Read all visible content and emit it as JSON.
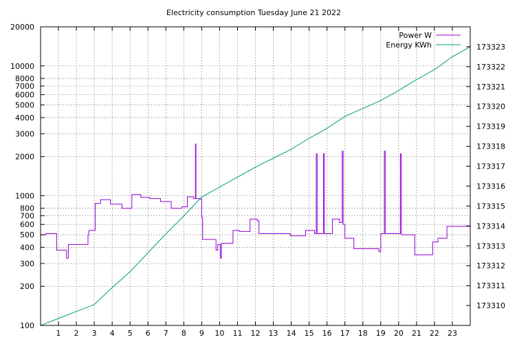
{
  "chart_data": {
    "type": "line",
    "title": "Electricity consumption Tuesday June 21 2022",
    "xlabel": "",
    "xlim": [
      0,
      24
    ],
    "x_ticks": [
      1,
      2,
      3,
      4,
      5,
      6,
      7,
      8,
      9,
      10,
      11,
      12,
      13,
      14,
      15,
      16,
      17,
      18,
      19,
      20,
      21,
      22,
      23
    ],
    "y_axes": [
      {
        "side": "left",
        "label": "",
        "scale": "log",
        "ylim": [
          100,
          20000
        ],
        "ticks": [
          {
            "value": 100,
            "label": "100"
          },
          {
            "value": 200,
            "label": "200"
          },
          {
            "value": 300,
            "label": "300"
          },
          {
            "value": 400,
            "label": "400"
          },
          {
            "value": 500,
            "label": "500"
          },
          {
            "value": 600,
            "label": "600"
          },
          {
            "value": 700,
            "label": "700"
          },
          {
            "value": 800,
            "label": "800"
          },
          {
            "value": 1000,
            "label": "1000"
          },
          {
            "value": 2000,
            "label": "2000"
          },
          {
            "value": 3000,
            "label": "3000"
          },
          {
            "value": 4000,
            "label": "4000"
          },
          {
            "value": 5000,
            "label": "5000"
          },
          {
            "value": 6000,
            "label": "6000"
          },
          {
            "value": 7000,
            "label": "7000"
          },
          {
            "value": 8000,
            "label": "8000"
          },
          {
            "value": 10000,
            "label": "10000"
          },
          {
            "value": 20000,
            "label": "20000"
          }
        ]
      },
      {
        "side": "right",
        "label": "",
        "scale": "linear",
        "ylim": [
          173309.0,
          173324.0
        ],
        "ticks": [
          173310,
          173311,
          173312,
          173313,
          173314,
          173315,
          173316,
          173317,
          173318,
          173319,
          173320,
          173321,
          173322,
          173323
        ]
      }
    ],
    "grid": true,
    "legend_position": "top-right",
    "series": [
      {
        "name": "Power W",
        "axis": "left",
        "color": "#9400d3",
        "style": "steps",
        "points": [
          [
            0.0,
            500
          ],
          [
            0.3,
            510
          ],
          [
            0.9,
            380
          ],
          [
            1.4,
            380
          ],
          [
            1.45,
            330
          ],
          [
            1.55,
            420
          ],
          [
            2.6,
            420
          ],
          [
            2.65,
            500
          ],
          [
            2.7,
            540
          ],
          [
            3.0,
            540
          ],
          [
            3.05,
            870
          ],
          [
            3.35,
            930
          ],
          [
            3.9,
            860
          ],
          [
            4.55,
            800
          ],
          [
            5.1,
            1020
          ],
          [
            5.6,
            970
          ],
          [
            6.1,
            950
          ],
          [
            6.7,
            900
          ],
          [
            7.3,
            800
          ],
          [
            7.9,
            820
          ],
          [
            8.2,
            980
          ],
          [
            8.55,
            950
          ],
          [
            8.65,
            2500
          ],
          [
            8.68,
            950
          ],
          [
            8.9,
            940
          ],
          [
            9.0,
            680
          ],
          [
            9.05,
            460
          ],
          [
            9.8,
            380
          ],
          [
            9.9,
            420
          ],
          [
            10.05,
            330
          ],
          [
            10.1,
            430
          ],
          [
            10.75,
            540
          ],
          [
            11.1,
            530
          ],
          [
            11.7,
            660
          ],
          [
            12.1,
            640
          ],
          [
            12.2,
            510
          ],
          [
            13.0,
            510
          ],
          [
            13.95,
            490
          ],
          [
            14.8,
            540
          ],
          [
            15.3,
            510
          ],
          [
            15.4,
            2100
          ],
          [
            15.45,
            510
          ],
          [
            15.8,
            2100
          ],
          [
            15.85,
            510
          ],
          [
            16.3,
            660
          ],
          [
            16.7,
            620
          ],
          [
            16.85,
            2200
          ],
          [
            16.9,
            600
          ],
          [
            17.0,
            470
          ],
          [
            17.5,
            390
          ],
          [
            18.9,
            370
          ],
          [
            19.0,
            510
          ],
          [
            19.2,
            2200
          ],
          [
            19.25,
            510
          ],
          [
            20.1,
            2100
          ],
          [
            20.15,
            500
          ],
          [
            20.9,
            350
          ],
          [
            21.9,
            440
          ],
          [
            22.2,
            470
          ],
          [
            22.7,
            580
          ],
          [
            24.0,
            580
          ]
        ]
      },
      {
        "name": "Energy KWh",
        "axis": "right",
        "color": "#009e73",
        "style": "line",
        "points": [
          [
            0.0,
            173309.0
          ],
          [
            1.0,
            173309.35
          ],
          [
            2.0,
            173309.7
          ],
          [
            3.0,
            173310.05
          ],
          [
            4.0,
            173310.9
          ],
          [
            5.0,
            173311.7
          ],
          [
            6.0,
            173312.65
          ],
          [
            7.0,
            173313.6
          ],
          [
            8.0,
            173314.5
          ],
          [
            9.0,
            173315.45
          ],
          [
            10.0,
            173315.95
          ],
          [
            11.0,
            173316.45
          ],
          [
            12.0,
            173316.95
          ],
          [
            13.0,
            173317.4
          ],
          [
            14.0,
            173317.85
          ],
          [
            15.0,
            173318.4
          ],
          [
            16.0,
            173318.9
          ],
          [
            17.0,
            173319.5
          ],
          [
            18.0,
            173319.9
          ],
          [
            19.0,
            173320.3
          ],
          [
            20.0,
            173320.8
          ],
          [
            21.0,
            173321.35
          ],
          [
            22.0,
            173321.85
          ],
          [
            23.0,
            173322.5
          ],
          [
            24.0,
            173323.0
          ]
        ]
      }
    ]
  }
}
